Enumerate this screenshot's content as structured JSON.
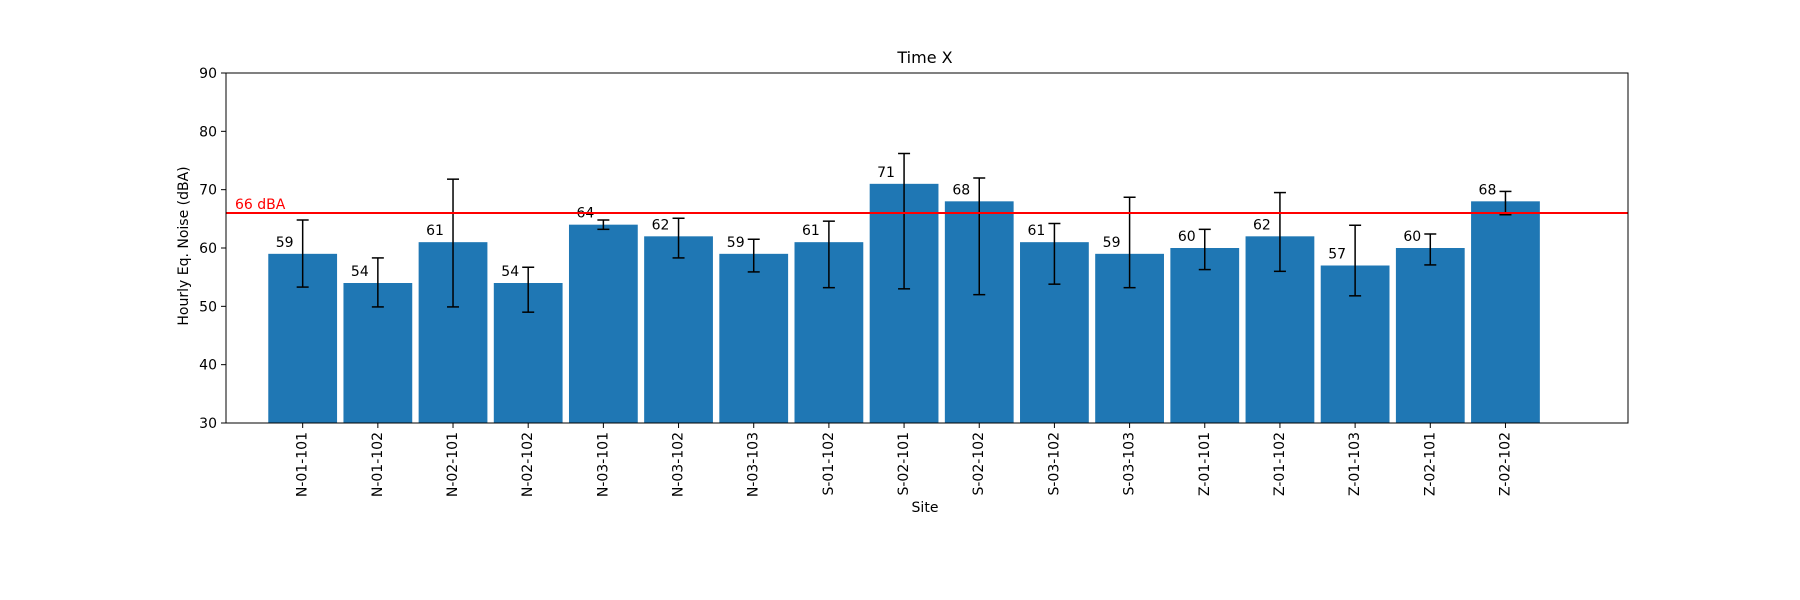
{
  "chart_data": {
    "type": "bar",
    "title": "Time X",
    "xlabel": "Site",
    "ylabel": "Hourly Eq. Noise (dBA)",
    "ylim": [
      30,
      90
    ],
    "yticks": [
      30,
      40,
      50,
      60,
      70,
      80,
      90
    ],
    "grid": false,
    "categories": [
      "N-01-101",
      "N-01-102",
      "N-02-101",
      "N-02-102",
      "N-03-101",
      "N-03-102",
      "N-03-103",
      "S-01-102",
      "S-02-101",
      "S-02-102",
      "S-03-102",
      "S-03-103",
      "Z-01-101",
      "Z-01-102",
      "Z-01-103",
      "Z-02-101",
      "Z-02-102"
    ],
    "values": [
      59,
      54,
      61,
      54,
      64,
      62,
      59,
      61,
      71,
      68,
      61,
      59,
      60,
      62,
      57,
      60,
      68
    ],
    "value_labels": [
      "59",
      "54",
      "61",
      "54",
      "64",
      "62",
      "59",
      "61",
      "71",
      "68",
      "61",
      "59",
      "60",
      "62",
      "57",
      "60",
      "68"
    ],
    "error_low": [
      53.3,
      49.9,
      49.9,
      49.0,
      63.2,
      58.3,
      55.9,
      53.2,
      53.0,
      52.0,
      53.8,
      53.2,
      56.3,
      56.0,
      51.8,
      57.1,
      65.7
    ],
    "error_high": [
      64.8,
      58.3,
      71.8,
      56.7,
      64.8,
      65.1,
      61.5,
      64.6,
      76.2,
      72.0,
      64.2,
      68.7,
      63.2,
      69.5,
      63.9,
      62.4,
      69.7
    ],
    "bar_color": "#1f77b4",
    "reference_line": {
      "value": 66,
      "label": "66 dBA",
      "color": "#ff0000"
    }
  }
}
